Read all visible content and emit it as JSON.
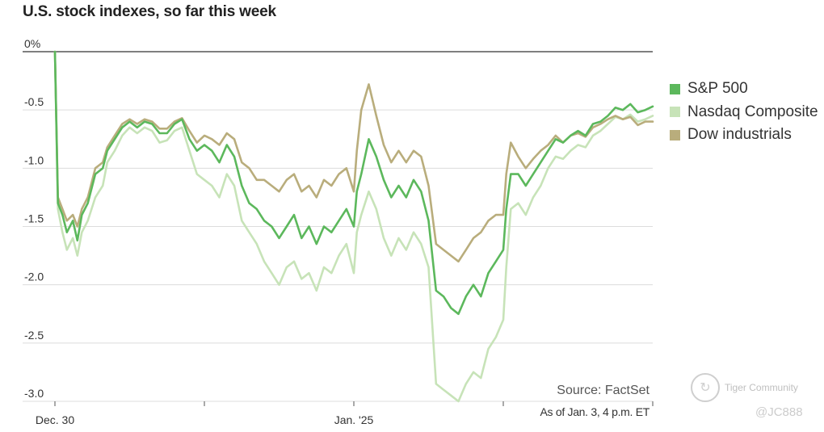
{
  "chart_data": {
    "type": "line",
    "title": "U.S. stock indexes, so far this week",
    "ylim": [
      -3.0,
      0
    ],
    "y_ticks": [
      {
        "value": 0,
        "label": "0%"
      },
      {
        "value": -0.5,
        "label": "-0.5"
      },
      {
        "value": -1.0,
        "label": "-1.0"
      },
      {
        "value": -1.5,
        "label": "-1.5"
      },
      {
        "value": -2.0,
        "label": "-2.0"
      },
      {
        "value": -2.5,
        "label": "-2.5"
      },
      {
        "value": -3.0,
        "label": "-3.0"
      }
    ],
    "xlim": [
      0,
      4
    ],
    "x_ticks": [
      {
        "value": 0,
        "label": "Dec. 30"
      },
      {
        "value": 1,
        "label": ""
      },
      {
        "value": 2,
        "label": "Jan. '25"
      },
      {
        "value": 3,
        "label": ""
      },
      {
        "value": 4,
        "label": ""
      }
    ],
    "legend_position": "right",
    "series": [
      {
        "name": "S&P 500",
        "color": "#5cb85c",
        "width": 2.6,
        "points": [
          [
            0,
            0
          ],
          [
            0.02,
            -1.3
          ],
          [
            0.05,
            -1.4
          ],
          [
            0.08,
            -1.55
          ],
          [
            0.12,
            -1.45
          ],
          [
            0.15,
            -1.62
          ],
          [
            0.18,
            -1.4
          ],
          [
            0.22,
            -1.3
          ],
          [
            0.27,
            -1.05
          ],
          [
            0.32,
            -1.0
          ],
          [
            0.35,
            -0.85
          ],
          [
            0.4,
            -0.75
          ],
          [
            0.45,
            -0.65
          ],
          [
            0.5,
            -0.6
          ],
          [
            0.55,
            -0.65
          ],
          [
            0.6,
            -0.6
          ],
          [
            0.65,
            -0.62
          ],
          [
            0.7,
            -0.7
          ],
          [
            0.75,
            -0.7
          ],
          [
            0.8,
            -0.62
          ],
          [
            0.85,
            -0.58
          ],
          [
            0.9,
            -0.75
          ],
          [
            0.95,
            -0.85
          ],
          [
            1.0,
            -0.8
          ],
          [
            1.05,
            -0.85
          ],
          [
            1.1,
            -0.95
          ],
          [
            1.15,
            -0.8
          ],
          [
            1.2,
            -0.9
          ],
          [
            1.25,
            -1.15
          ],
          [
            1.3,
            -1.3
          ],
          [
            1.35,
            -1.35
          ],
          [
            1.4,
            -1.45
          ],
          [
            1.45,
            -1.5
          ],
          [
            1.5,
            -1.6
          ],
          [
            1.55,
            -1.5
          ],
          [
            1.6,
            -1.4
          ],
          [
            1.65,
            -1.6
          ],
          [
            1.7,
            -1.5
          ],
          [
            1.75,
            -1.65
          ],
          [
            1.8,
            -1.5
          ],
          [
            1.85,
            -1.55
          ],
          [
            1.9,
            -1.45
          ],
          [
            1.95,
            -1.35
          ],
          [
            2.0,
            -1.5
          ],
          [
            2.02,
            -1.2
          ],
          [
            2.05,
            -1.05
          ],
          [
            2.1,
            -0.75
          ],
          [
            2.15,
            -0.9
          ],
          [
            2.2,
            -1.1
          ],
          [
            2.25,
            -1.25
          ],
          [
            2.3,
            -1.15
          ],
          [
            2.35,
            -1.25
          ],
          [
            2.4,
            -1.1
          ],
          [
            2.45,
            -1.2
          ],
          [
            2.5,
            -1.45
          ],
          [
            2.55,
            -2.05
          ],
          [
            2.6,
            -2.1
          ],
          [
            2.65,
            -2.2
          ],
          [
            2.7,
            -2.25
          ],
          [
            2.75,
            -2.1
          ],
          [
            2.8,
            -2.0
          ],
          [
            2.85,
            -2.1
          ],
          [
            2.9,
            -1.9
          ],
          [
            2.95,
            -1.8
          ],
          [
            3.0,
            -1.7
          ],
          [
            3.02,
            -1.35
          ],
          [
            3.05,
            -1.05
          ],
          [
            3.1,
            -1.05
          ],
          [
            3.15,
            -1.15
          ],
          [
            3.2,
            -1.05
          ],
          [
            3.25,
            -0.95
          ],
          [
            3.3,
            -0.85
          ],
          [
            3.35,
            -0.75
          ],
          [
            3.4,
            -0.78
          ],
          [
            3.45,
            -0.72
          ],
          [
            3.5,
            -0.68
          ],
          [
            3.55,
            -0.72
          ],
          [
            3.6,
            -0.62
          ],
          [
            3.65,
            -0.6
          ],
          [
            3.7,
            -0.55
          ],
          [
            3.75,
            -0.48
          ],
          [
            3.8,
            -0.5
          ],
          [
            3.85,
            -0.45
          ],
          [
            3.9,
            -0.52
          ],
          [
            3.95,
            -0.5
          ],
          [
            4.0,
            -0.47
          ]
        ]
      },
      {
        "name": "Nasdaq Composite",
        "color": "#c7e3b8",
        "width": 2.6,
        "points": [
          [
            0,
            0
          ],
          [
            0.02,
            -1.35
          ],
          [
            0.05,
            -1.55
          ],
          [
            0.08,
            -1.7
          ],
          [
            0.12,
            -1.6
          ],
          [
            0.15,
            -1.75
          ],
          [
            0.18,
            -1.55
          ],
          [
            0.22,
            -1.45
          ],
          [
            0.27,
            -1.25
          ],
          [
            0.32,
            -1.15
          ],
          [
            0.35,
            -0.95
          ],
          [
            0.4,
            -0.85
          ],
          [
            0.45,
            -0.72
          ],
          [
            0.5,
            -0.65
          ],
          [
            0.55,
            -0.7
          ],
          [
            0.6,
            -0.65
          ],
          [
            0.65,
            -0.68
          ],
          [
            0.7,
            -0.78
          ],
          [
            0.75,
            -0.76
          ],
          [
            0.8,
            -0.68
          ],
          [
            0.85,
            -0.65
          ],
          [
            0.9,
            -0.85
          ],
          [
            0.95,
            -1.05
          ],
          [
            1.0,
            -1.1
          ],
          [
            1.05,
            -1.15
          ],
          [
            1.1,
            -1.25
          ],
          [
            1.15,
            -1.05
          ],
          [
            1.2,
            -1.15
          ],
          [
            1.25,
            -1.45
          ],
          [
            1.3,
            -1.55
          ],
          [
            1.35,
            -1.65
          ],
          [
            1.4,
            -1.8
          ],
          [
            1.45,
            -1.9
          ],
          [
            1.5,
            -2.0
          ],
          [
            1.55,
            -1.85
          ],
          [
            1.6,
            -1.8
          ],
          [
            1.65,
            -1.95
          ],
          [
            1.7,
            -1.9
          ],
          [
            1.75,
            -2.05
          ],
          [
            1.8,
            -1.85
          ],
          [
            1.85,
            -1.9
          ],
          [
            1.9,
            -1.75
          ],
          [
            1.95,
            -1.65
          ],
          [
            2.0,
            -1.9
          ],
          [
            2.02,
            -1.55
          ],
          [
            2.05,
            -1.4
          ],
          [
            2.1,
            -1.2
          ],
          [
            2.15,
            -1.35
          ],
          [
            2.2,
            -1.6
          ],
          [
            2.25,
            -1.75
          ],
          [
            2.3,
            -1.6
          ],
          [
            2.35,
            -1.7
          ],
          [
            2.4,
            -1.55
          ],
          [
            2.45,
            -1.65
          ],
          [
            2.5,
            -1.85
          ],
          [
            2.55,
            -2.85
          ],
          [
            2.6,
            -2.9
          ],
          [
            2.65,
            -2.95
          ],
          [
            2.7,
            -3.0
          ],
          [
            2.75,
            -2.85
          ],
          [
            2.8,
            -2.75
          ],
          [
            2.85,
            -2.8
          ],
          [
            2.9,
            -2.55
          ],
          [
            2.95,
            -2.45
          ],
          [
            3.0,
            -2.3
          ],
          [
            3.02,
            -1.85
          ],
          [
            3.05,
            -1.35
          ],
          [
            3.1,
            -1.3
          ],
          [
            3.15,
            -1.4
          ],
          [
            3.2,
            -1.25
          ],
          [
            3.25,
            -1.15
          ],
          [
            3.3,
            -1.0
          ],
          [
            3.35,
            -0.9
          ],
          [
            3.4,
            -0.92
          ],
          [
            3.45,
            -0.85
          ],
          [
            3.5,
            -0.8
          ],
          [
            3.55,
            -0.82
          ],
          [
            3.6,
            -0.72
          ],
          [
            3.65,
            -0.68
          ],
          [
            3.7,
            -0.62
          ],
          [
            3.75,
            -0.56
          ],
          [
            3.8,
            -0.58
          ],
          [
            3.85,
            -0.54
          ],
          [
            3.9,
            -0.6
          ],
          [
            3.95,
            -0.58
          ],
          [
            4.0,
            -0.55
          ]
        ]
      },
      {
        "name": "Dow industrials",
        "color": "#b9ad7c",
        "width": 2.6,
        "points": [
          [
            0,
            0
          ],
          [
            0.02,
            -1.25
          ],
          [
            0.05,
            -1.35
          ],
          [
            0.08,
            -1.45
          ],
          [
            0.12,
            -1.4
          ],
          [
            0.15,
            -1.5
          ],
          [
            0.18,
            -1.35
          ],
          [
            0.22,
            -1.25
          ],
          [
            0.27,
            -1.0
          ],
          [
            0.32,
            -0.95
          ],
          [
            0.35,
            -0.82
          ],
          [
            0.4,
            -0.72
          ],
          [
            0.45,
            -0.62
          ],
          [
            0.5,
            -0.58
          ],
          [
            0.55,
            -0.62
          ],
          [
            0.6,
            -0.58
          ],
          [
            0.65,
            -0.6
          ],
          [
            0.7,
            -0.66
          ],
          [
            0.75,
            -0.66
          ],
          [
            0.8,
            -0.6
          ],
          [
            0.85,
            -0.57
          ],
          [
            0.9,
            -0.68
          ],
          [
            0.95,
            -0.78
          ],
          [
            1.0,
            -0.72
          ],
          [
            1.05,
            -0.75
          ],
          [
            1.1,
            -0.8
          ],
          [
            1.15,
            -0.7
          ],
          [
            1.2,
            -0.75
          ],
          [
            1.25,
            -0.95
          ],
          [
            1.3,
            -1.0
          ],
          [
            1.35,
            -1.1
          ],
          [
            1.4,
            -1.1
          ],
          [
            1.45,
            -1.15
          ],
          [
            1.5,
            -1.2
          ],
          [
            1.55,
            -1.1
          ],
          [
            1.6,
            -1.05
          ],
          [
            1.65,
            -1.2
          ],
          [
            1.7,
            -1.15
          ],
          [
            1.75,
            -1.25
          ],
          [
            1.8,
            -1.1
          ],
          [
            1.85,
            -1.15
          ],
          [
            1.9,
            -1.05
          ],
          [
            1.95,
            -1.0
          ],
          [
            2.0,
            -1.2
          ],
          [
            2.02,
            -0.85
          ],
          [
            2.05,
            -0.5
          ],
          [
            2.1,
            -0.28
          ],
          [
            2.15,
            -0.55
          ],
          [
            2.2,
            -0.8
          ],
          [
            2.25,
            -0.95
          ],
          [
            2.3,
            -0.85
          ],
          [
            2.35,
            -0.95
          ],
          [
            2.4,
            -0.85
          ],
          [
            2.45,
            -0.9
          ],
          [
            2.5,
            -1.15
          ],
          [
            2.55,
            -1.65
          ],
          [
            2.6,
            -1.7
          ],
          [
            2.65,
            -1.75
          ],
          [
            2.7,
            -1.8
          ],
          [
            2.75,
            -1.7
          ],
          [
            2.8,
            -1.6
          ],
          [
            2.85,
            -1.55
          ],
          [
            2.9,
            -1.45
          ],
          [
            2.95,
            -1.4
          ],
          [
            3.0,
            -1.4
          ],
          [
            3.02,
            -1.05
          ],
          [
            3.05,
            -0.78
          ],
          [
            3.1,
            -0.9
          ],
          [
            3.15,
            -1.0
          ],
          [
            3.2,
            -0.92
          ],
          [
            3.25,
            -0.85
          ],
          [
            3.3,
            -0.8
          ],
          [
            3.35,
            -0.72
          ],
          [
            3.4,
            -0.78
          ],
          [
            3.45,
            -0.72
          ],
          [
            3.5,
            -0.7
          ],
          [
            3.55,
            -0.73
          ],
          [
            3.6,
            -0.65
          ],
          [
            3.65,
            -0.62
          ],
          [
            3.7,
            -0.58
          ],
          [
            3.75,
            -0.55
          ],
          [
            3.8,
            -0.58
          ],
          [
            3.85,
            -0.56
          ],
          [
            3.9,
            -0.63
          ],
          [
            3.95,
            -0.6
          ],
          [
            4.0,
            -0.6
          ]
        ]
      }
    ]
  },
  "source_label": "Source: FactSet",
  "as_of_label": "As of Jan. 3, 4 p.m. ET",
  "watermark": {
    "text": "Tiger Community",
    "handle": "@JC888"
  }
}
